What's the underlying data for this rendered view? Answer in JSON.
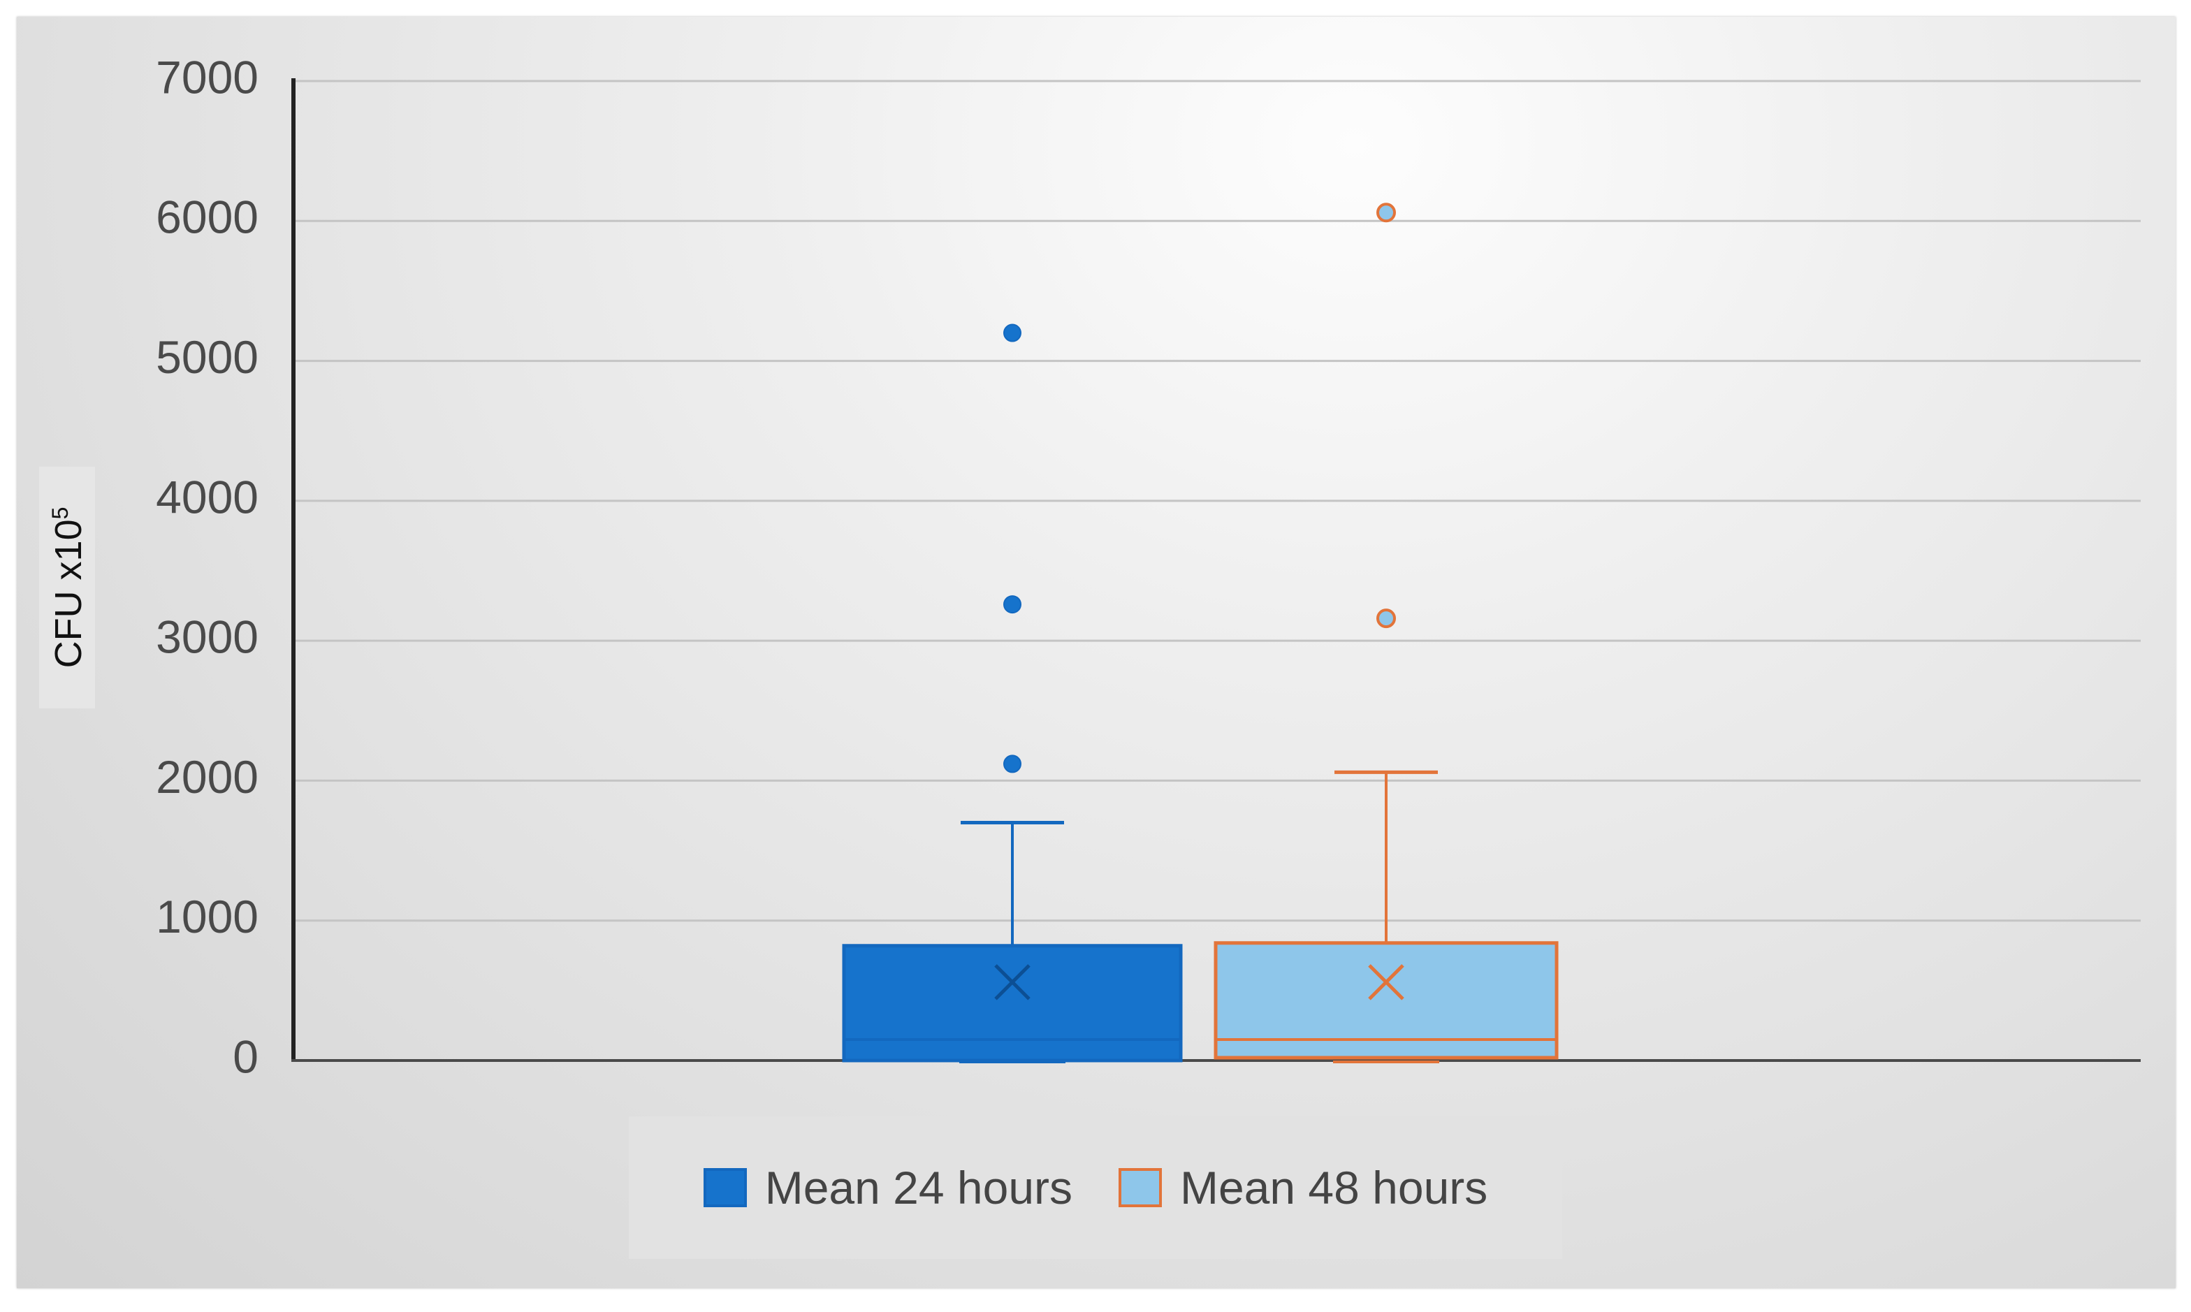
{
  "chart_data": {
    "type": "box",
    "ylabel": "CFU x10",
    "ylabel_exponent": "5",
    "ylim": [
      0,
      7000
    ],
    "yticks": [
      "0",
      "1000",
      "2000",
      "3000",
      "4000",
      "5000",
      "6000",
      "7000"
    ],
    "grid": true,
    "legend_position": "bottom",
    "series": [
      {
        "name": "Mean 24 hours",
        "fill": "#1673cc",
        "stroke": "#1368bf",
        "min": 0,
        "q1": 0,
        "median": 150,
        "q3": 820,
        "whisker_high": 1700,
        "mean": 560,
        "outliers": [
          2120,
          3260,
          5200
        ]
      },
      {
        "name": "Mean 48 hours",
        "fill": "#8ec6ea",
        "stroke": "#e2743a",
        "min": 0,
        "q1": 20,
        "median": 150,
        "q3": 840,
        "whisker_high": 2060,
        "mean": 560,
        "outliers": [
          3160,
          6060
        ]
      }
    ]
  }
}
